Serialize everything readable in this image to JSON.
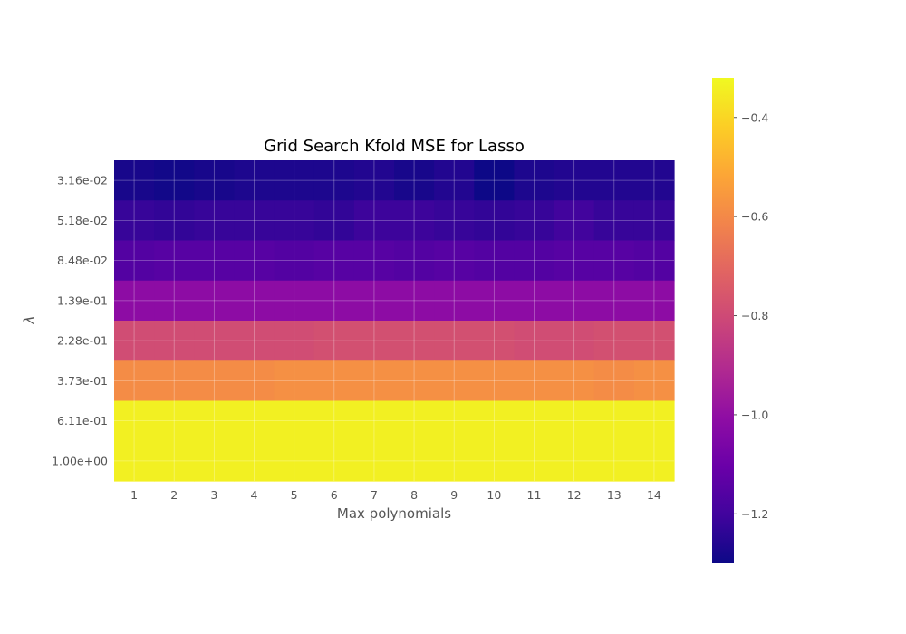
{
  "chart_data": {
    "type": "heatmap",
    "title": "Grid Search Kfold MSE for Lasso",
    "xlabel": "Max polynomials",
    "ylabel": "λ",
    "x": [
      "1",
      "2",
      "3",
      "4",
      "5",
      "6",
      "7",
      "8",
      "9",
      "10",
      "11",
      "12",
      "13",
      "14"
    ],
    "y": [
      "3.16e-02",
      "5.18e-02",
      "8.48e-02",
      "1.39e-01",
      "2.28e-01",
      "3.73e-01",
      "6.11e-01",
      "1.00e+00"
    ],
    "values": [
      [
        -1.28,
        -1.29,
        -1.28,
        -1.27,
        -1.27,
        -1.27,
        -1.26,
        -1.28,
        -1.26,
        -1.3,
        -1.27,
        -1.26,
        -1.26,
        -1.26
      ],
      [
        -1.22,
        -1.23,
        -1.22,
        -1.22,
        -1.22,
        -1.23,
        -1.21,
        -1.21,
        -1.22,
        -1.23,
        -1.22,
        -1.2,
        -1.22,
        -1.22
      ],
      [
        -1.16,
        -1.15,
        -1.15,
        -1.15,
        -1.16,
        -1.15,
        -1.15,
        -1.16,
        -1.15,
        -1.16,
        -1.16,
        -1.15,
        -1.15,
        -1.16
      ],
      [
        -1.01,
        -1.01,
        -1.01,
        -1.01,
        -1.01,
        -1.01,
        -1.01,
        -1.01,
        -1.01,
        -1.01,
        -1.01,
        -1.01,
        -1.01,
        -1.01
      ],
      [
        -0.79,
        -0.79,
        -0.79,
        -0.79,
        -0.79,
        -0.78,
        -0.78,
        -0.78,
        -0.78,
        -0.78,
        -0.79,
        -0.79,
        -0.78,
        -0.78
      ],
      [
        -0.59,
        -0.59,
        -0.59,
        -0.59,
        -0.58,
        -0.58,
        -0.58,
        -0.58,
        -0.58,
        -0.58,
        -0.58,
        -0.58,
        -0.59,
        -0.58
      ],
      [
        -0.34,
        -0.34,
        -0.34,
        -0.34,
        -0.34,
        -0.34,
        -0.34,
        -0.34,
        -0.34,
        -0.34,
        -0.34,
        -0.34,
        -0.34,
        -0.34
      ],
      [
        -0.34,
        -0.34,
        -0.34,
        -0.34,
        -0.34,
        -0.34,
        -0.34,
        -0.34,
        -0.34,
        -0.34,
        -0.34,
        -0.34,
        -0.34,
        -0.34
      ]
    ],
    "colormap": "plasma",
    "vmin": -1.3,
    "vmax": -0.32,
    "colorbar_ticks": [
      -0.4,
      -0.6,
      -0.8,
      -1.0,
      -1.2
    ],
    "colorbar_tick_labels": [
      "−0.4",
      "−0.6",
      "−0.8",
      "−1.0",
      "−1.2"
    ],
    "grid": true
  }
}
